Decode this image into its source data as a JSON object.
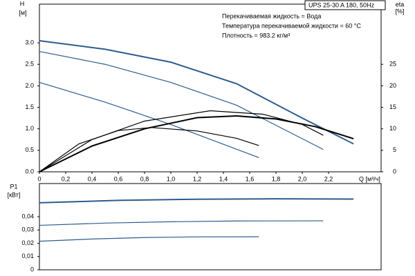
{
  "chart_data": [
    {
      "type": "line",
      "ylabel": "H",
      "ylabel_unit": "[м]",
      "y2label": "eta",
      "y2label_unit": "[%]",
      "xlabel": "Q [м³/ч]",
      "title": "UPS 25-30 A 180, 50Hz",
      "annotations": [
        "Перекачиваемая жидкость = Вода",
        "Температура перекачиваемой жидкости = 60 °C",
        "Плотность = 983.2 кг/м³"
      ],
      "xlim": [
        0,
        2.6
      ],
      "ylim": [
        0,
        3.9
      ],
      "y2lim": [
        0,
        39
      ],
      "xticks": [
        0,
        {
          "value": 0.2,
          "label": "0,2"
        },
        {
          "value": 0.4,
          "label": "0,4"
        },
        {
          "value": 0.6,
          "label": "0,6"
        },
        {
          "value": 0.8,
          "label": "0,8"
        },
        {
          "value": 1.0,
          "label": "1,0"
        },
        {
          "value": 1.2,
          "label": "1,2"
        },
        {
          "value": 1.4,
          "label": "1,4"
        },
        {
          "value": 1.6,
          "label": "1,6"
        },
        {
          "value": 1.8,
          "label": "1,8"
        },
        {
          "value": 2.0,
          "label": "2,0"
        },
        {
          "value": 2.2,
          "label": "2,2"
        }
      ],
      "yticks": [
        {
          "value": 0,
          "label": "0.0"
        },
        0.5,
        {
          "value": 1,
          "label": "1.0"
        },
        1.5,
        {
          "value": 2,
          "label": "2.0"
        },
        2.5,
        {
          "value": 3,
          "label": "3.0"
        }
      ],
      "y2ticks": [
        0,
        5,
        10,
        15,
        20,
        25
      ],
      "series": [
        {
          "color": "#2b5b8e",
          "width": 2,
          "x": [
            0,
            0.5,
            1.0,
            1.5,
            2.0,
            2.39
          ],
          "values": [
            3.05,
            2.85,
            2.55,
            2.05,
            1.25,
            0.65
          ]
        },
        {
          "color": "#2b5b8e",
          "width": 1.2,
          "x": [
            0,
            0.5,
            1.0,
            1.5,
            2.16
          ],
          "values": [
            2.8,
            2.5,
            2.08,
            1.55,
            0.52
          ]
        },
        {
          "color": "#2b5b8e",
          "width": 1.2,
          "x": [
            0,
            0.5,
            1.0,
            1.67
          ],
          "values": [
            2.08,
            1.62,
            1.1,
            0.33
          ]
        },
        {
          "color": "#000000",
          "width": 2,
          "axis": "y2",
          "x": [
            0,
            0.4,
            0.8,
            1.2,
            1.5,
            1.8,
            2.1,
            2.39
          ],
          "values": [
            0,
            6,
            10,
            12.6,
            13,
            12.3,
            10.5,
            7.7
          ]
        },
        {
          "color": "#000000",
          "width": 1.2,
          "axis": "y2",
          "x": [
            0,
            0.4,
            0.8,
            1.3,
            1.7,
            2.0,
            2.16
          ],
          "values": [
            0,
            7.5,
            11.8,
            14.2,
            13.4,
            11,
            8.5
          ]
        },
        {
          "color": "#000000",
          "width": 1.2,
          "axis": "y2",
          "x": [
            0,
            0.3,
            0.6,
            0.85,
            1.2,
            1.5,
            1.67
          ],
          "values": [
            0,
            6.5,
            9.6,
            10.3,
            9.5,
            7.8,
            6.1
          ]
        }
      ]
    },
    {
      "type": "line",
      "ylabel": "P1",
      "ylabel_unit": "[кВт]",
      "xlim": [
        0,
        2.6
      ],
      "ylim": [
        0,
        0.065
      ],
      "yticks": [
        0,
        {
          "value": 0.01,
          "label": "0,01"
        },
        {
          "value": 0.02,
          "label": "0,02"
        },
        {
          "value": 0.03,
          "label": "0,03"
        },
        {
          "value": 0.04,
          "label": "0,04"
        }
      ],
      "series": [
        {
          "color": "#2b5b8e",
          "width": 2,
          "x": [
            0,
            0.6,
            1.2,
            1.8,
            2.39
          ],
          "values": [
            0.0505,
            0.0523,
            0.0532,
            0.0535,
            0.0533
          ]
        },
        {
          "color": "#2b5b8e",
          "width": 1.2,
          "x": [
            0,
            0.5,
            1.0,
            1.5,
            2.16
          ],
          "values": [
            0.0335,
            0.0352,
            0.0362,
            0.0368,
            0.0369
          ]
        },
        {
          "color": "#2b5b8e",
          "width": 1.2,
          "x": [
            0,
            0.4,
            0.8,
            1.2,
            1.67
          ],
          "values": [
            0.0215,
            0.0232,
            0.0243,
            0.0248,
            0.0249
          ]
        }
      ]
    }
  ]
}
